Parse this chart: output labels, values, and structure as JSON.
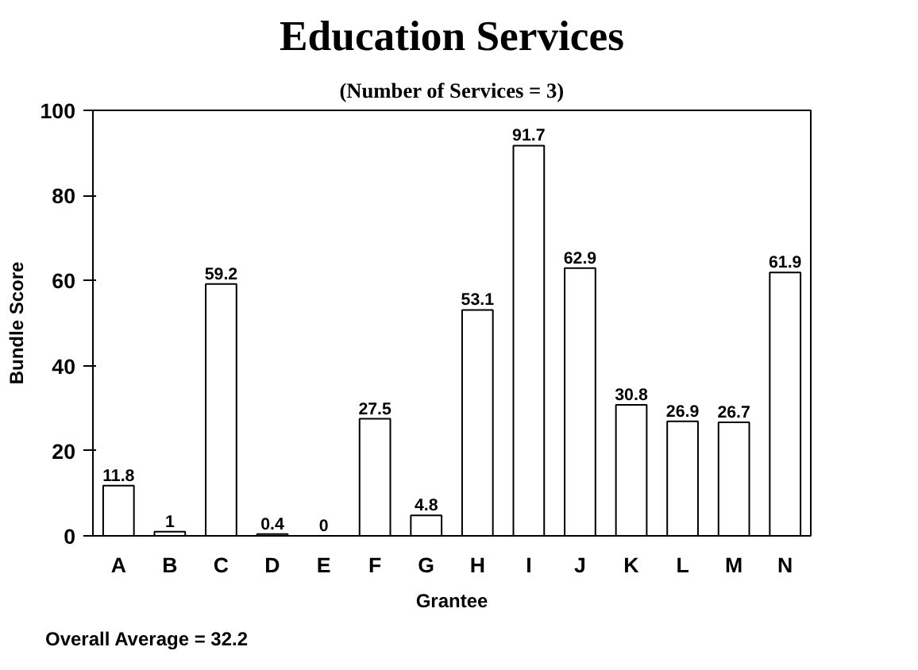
{
  "chart_data": {
    "type": "bar",
    "title": "Education Services",
    "subtitle": "(Number of Services = 3)",
    "xlabel": "Grantee",
    "ylabel": "Bundle Score",
    "categories": [
      "A",
      "B",
      "C",
      "D",
      "E",
      "F",
      "G",
      "H",
      "I",
      "J",
      "K",
      "L",
      "M",
      "N"
    ],
    "values": [
      11.8,
      1,
      59.2,
      0.4,
      0,
      27.5,
      4.8,
      53.1,
      91.7,
      62.9,
      30.8,
      26.9,
      26.7,
      61.9
    ],
    "color": "#ffffff",
    "ylim": [
      0,
      100
    ],
    "yticks": [
      0,
      20,
      40,
      60,
      80,
      100
    ],
    "grid": false,
    "data_labels": true,
    "annotations": [
      "Overall Average = 32.2"
    ]
  }
}
